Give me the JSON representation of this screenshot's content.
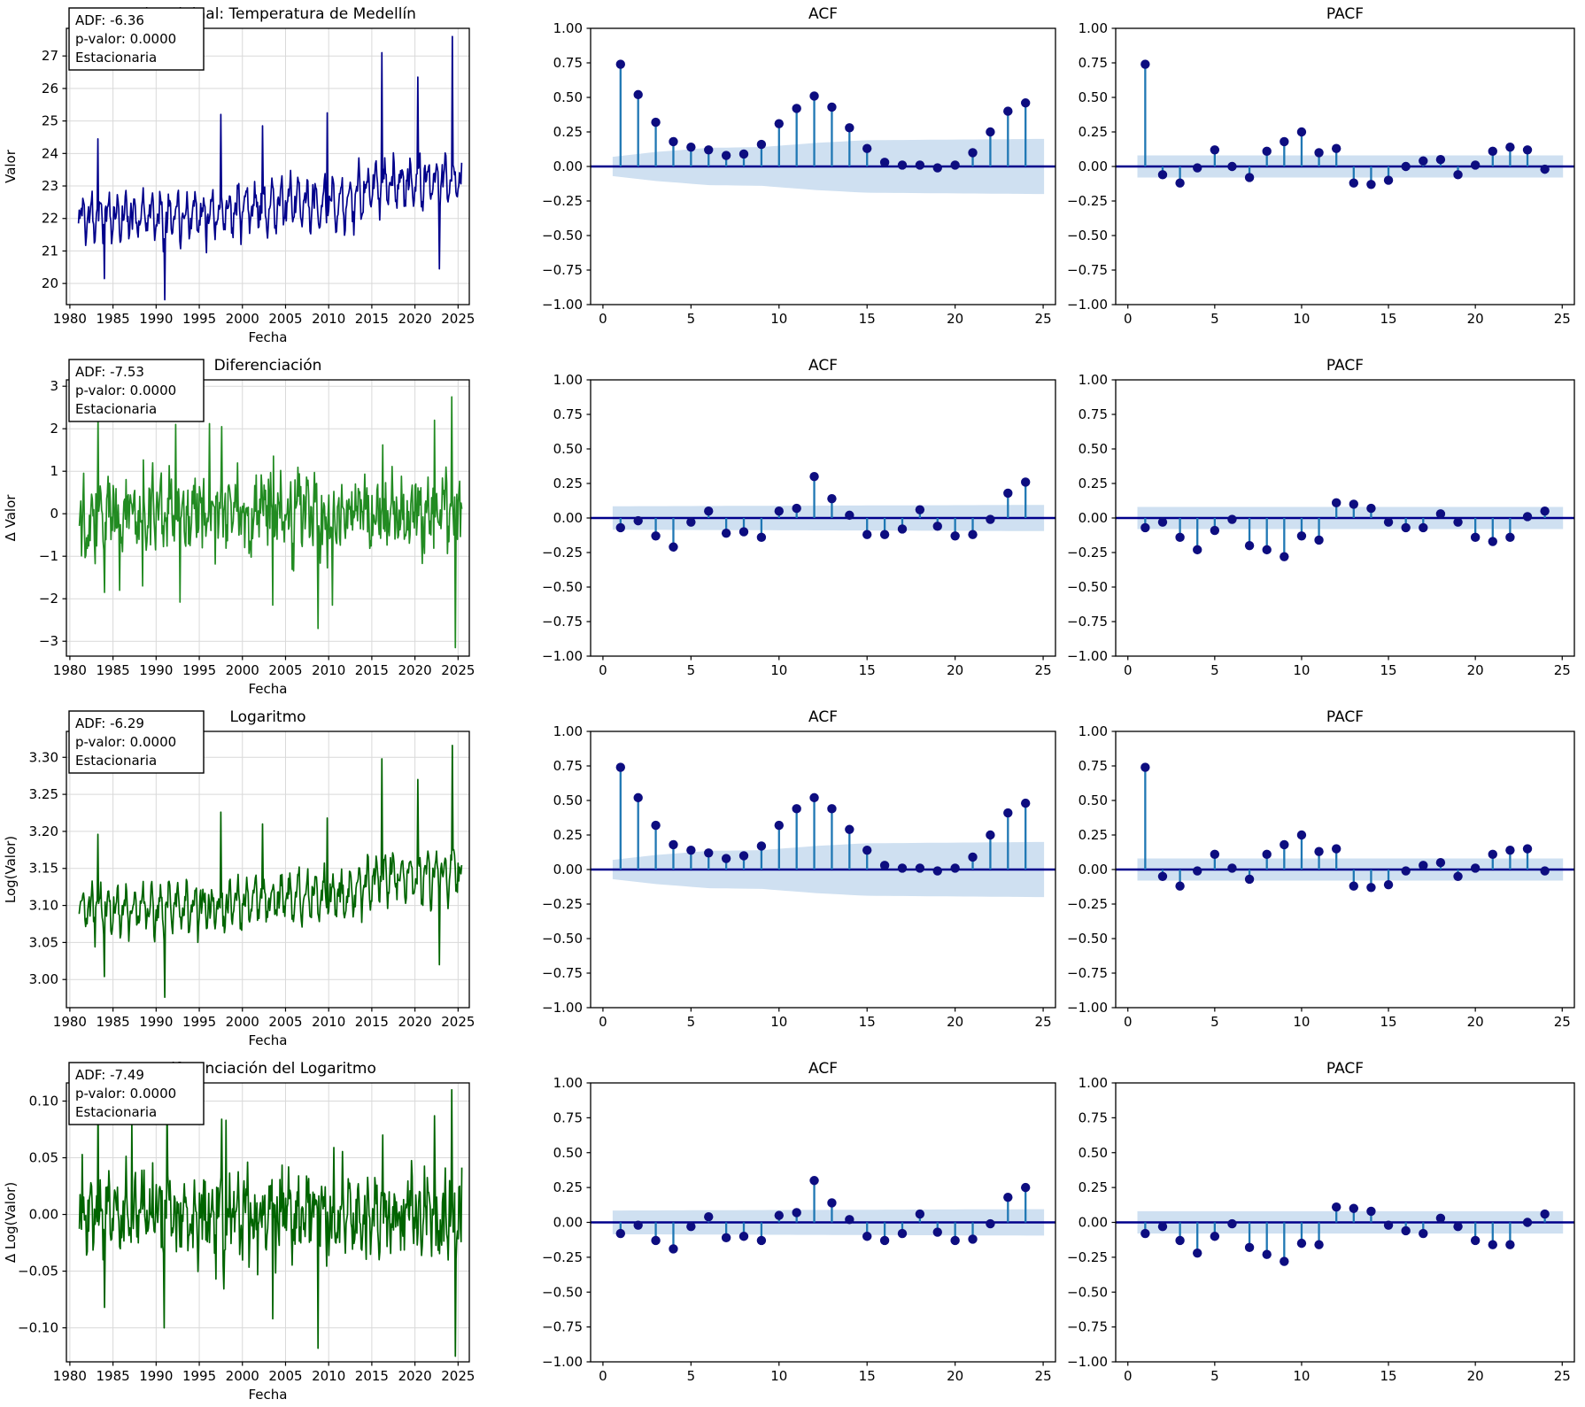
{
  "figure_title": "Análisis de estacionariedad: serie, ACF y PACF",
  "style": {
    "background": "#ffffff",
    "stem_line_color": "#1f77b4",
    "marker_color": "#0d0d80",
    "zero_line_color": "#00008B",
    "band_color": "#cfe0f1",
    "grid_color": "#d9d9d9",
    "spine_color": "#000000",
    "text_color": "#000000",
    "annotation_bg": "#ffffff",
    "annotation_border": "#000000"
  },
  "chart_data": [
    {
      "ts": {
        "type": "line",
        "title": "Serie original: Temperatura de Medellín",
        "xlabel": "Fecha",
        "ylabel": "Valor",
        "annotation_lines": [
          "ADF: -6.36",
          "p-valor: 0.0000",
          "Estacionaria"
        ],
        "line_color": "#00008B",
        "xlim": [
          1979.6,
          2026.3
        ],
        "xticks": [
          1980,
          1985,
          1990,
          1995,
          2000,
          2005,
          2010,
          2015,
          2020,
          2025
        ],
        "ylim": [
          19.35,
          27.85
        ],
        "yticks": [
          20,
          21,
          22,
          23,
          24,
          25,
          26,
          27
        ],
        "ytick_decimals": 0,
        "grid": true,
        "series_profile": {
          "seed": 11,
          "t_start": 1981.0,
          "t_end": 2025.45,
          "points_per_year": 12,
          "base_keypoints": [
            [
              1981,
              22.05
            ],
            [
              1995,
              22.15
            ],
            [
              2005,
              22.45
            ],
            [
              2012,
              22.45
            ],
            [
              2016,
              23.1
            ],
            [
              2020,
              23.05
            ],
            [
              2025.45,
              23.25
            ]
          ],
          "season_amp1": 0.5,
          "season_amp2": 0.28,
          "noise_amp": 0.42,
          "peaks": [
            [
              1983.25,
              24.45
            ],
            [
              1984.0,
              20.15
            ],
            [
              1991.0,
              19.5
            ],
            [
              1997.5,
              25.2
            ],
            [
              2002.3,
              24.85
            ],
            [
              2009.8,
              25.25
            ],
            [
              2016.2,
              27.1
            ],
            [
              2020.3,
              26.35
            ],
            [
              2022.8,
              20.45
            ],
            [
              2024.3,
              27.6
            ]
          ]
        }
      },
      "acf": {
        "type": "stem",
        "title": "ACF",
        "values": [
          0.74,
          0.52,
          0.32,
          0.18,
          0.14,
          0.12,
          0.08,
          0.09,
          0.16,
          0.31,
          0.42,
          0.51,
          0.43,
          0.28,
          0.13,
          0.03,
          0.01,
          0.01,
          -0.01,
          0.01,
          0.1,
          0.25,
          0.4,
          0.46
        ],
        "band_keypoints": [
          [
            0.55,
            0.07
          ],
          [
            3,
            0.105
          ],
          [
            6,
            0.135
          ],
          [
            9,
            0.14
          ],
          [
            12,
            0.17
          ],
          [
            15,
            0.19
          ],
          [
            25.5,
            0.2
          ]
        ],
        "xlim": [
          -0.7,
          25.7
        ],
        "xticks": [
          0,
          5,
          10,
          15,
          20,
          25
        ],
        "ylim": [
          -1,
          1
        ],
        "yticks": [
          1.0,
          0.75,
          0.5,
          0.25,
          0.0,
          -0.25,
          -0.5,
          -0.75,
          -1.0
        ]
      },
      "pacf": {
        "type": "stem",
        "title": "PACF",
        "values": [
          0.74,
          -0.06,
          -0.12,
          -0.01,
          0.12,
          0.0,
          -0.08,
          0.11,
          0.18,
          0.25,
          0.1,
          0.13,
          -0.12,
          -0.13,
          -0.1,
          0.0,
          0.04,
          0.05,
          -0.06,
          0.01,
          0.11,
          0.14,
          0.12,
          -0.02
        ],
        "band_keypoints": [
          [
            0.55,
            0.08
          ],
          [
            25.5,
            0.08
          ]
        ],
        "xlim": [
          -0.7,
          25.7
        ],
        "xticks": [
          0,
          5,
          10,
          15,
          20,
          25
        ],
        "ylim": [
          -1,
          1
        ],
        "yticks": [
          1.0,
          0.75,
          0.5,
          0.25,
          0.0,
          -0.25,
          -0.5,
          -0.75,
          -1.0
        ]
      }
    },
    {
      "ts": {
        "type": "line",
        "title": "Diferenciación",
        "xlabel": "Fecha",
        "ylabel": "Δ Valor",
        "annotation_lines": [
          "ADF: -7.53",
          "p-valor: 0.0000",
          "Estacionaria"
        ],
        "line_color": "#228B22",
        "xlim": [
          1979.6,
          2026.3
        ],
        "xticks": [
          1980,
          1985,
          1990,
          1995,
          2000,
          2005,
          2010,
          2015,
          2020,
          2025
        ],
        "ylim": [
          -3.35,
          3.15
        ],
        "yticks": [
          -3,
          -2,
          -1,
          0,
          1,
          2,
          3
        ],
        "ytick_decimals": 0,
        "grid": true,
        "series_profile": {
          "seed": 22,
          "t_start": 1981.1,
          "t_end": 2025.45,
          "points_per_year": 12,
          "base_keypoints": [
            [
              1981,
              0
            ],
            [
              2025.45,
              0
            ]
          ],
          "season_amp1": 0.3,
          "season_amp2": 0.22,
          "noise_amp": 0.85,
          "peaks": [
            [
              1983.3,
              2.3
            ],
            [
              1984.05,
              -1.85
            ],
            [
              1985.8,
              -1.8
            ],
            [
              1988.4,
              -1.7
            ],
            [
              1992.3,
              2.1
            ],
            [
              1992.8,
              -2.08
            ],
            [
              1996.2,
              2.12
            ],
            [
              1997.6,
              2.05
            ],
            [
              2003.5,
              -2.15
            ],
            [
              2008.8,
              -2.7
            ],
            [
              2010.4,
              -2.15
            ],
            [
              2016.3,
              1.62
            ],
            [
              2022.3,
              2.2
            ],
            [
              2024.3,
              2.75
            ],
            [
              2024.7,
              -3.15
            ]
          ]
        }
      },
      "acf": {
        "type": "stem",
        "title": "ACF",
        "values": [
          -0.07,
          -0.02,
          -0.13,
          -0.21,
          -0.03,
          0.05,
          -0.11,
          -0.1,
          -0.14,
          0.05,
          0.07,
          0.3,
          0.14,
          0.02,
          -0.12,
          -0.12,
          -0.08,
          0.06,
          -0.06,
          -0.13,
          -0.12,
          -0.01,
          0.18,
          0.26
        ],
        "band_keypoints": [
          [
            0.55,
            0.085
          ],
          [
            25.5,
            0.095
          ]
        ],
        "xlim": [
          -0.7,
          25.7
        ],
        "xticks": [
          0,
          5,
          10,
          15,
          20,
          25
        ],
        "ylim": [
          -1,
          1
        ],
        "yticks": [
          1.0,
          0.75,
          0.5,
          0.25,
          0.0,
          -0.25,
          -0.5,
          -0.75,
          -1.0
        ]
      },
      "pacf": {
        "type": "stem",
        "title": "PACF",
        "values": [
          -0.07,
          -0.03,
          -0.14,
          -0.23,
          -0.09,
          -0.01,
          -0.2,
          -0.23,
          -0.28,
          -0.13,
          -0.16,
          0.11,
          0.1,
          0.07,
          -0.03,
          -0.07,
          -0.07,
          0.03,
          -0.03,
          -0.14,
          -0.17,
          -0.14,
          0.01,
          0.05
        ],
        "band_keypoints": [
          [
            0.55,
            0.08
          ],
          [
            25.5,
            0.08
          ]
        ],
        "xlim": [
          -0.7,
          25.7
        ],
        "xticks": [
          0,
          5,
          10,
          15,
          20,
          25
        ],
        "ylim": [
          -1,
          1
        ],
        "yticks": [
          1.0,
          0.75,
          0.5,
          0.25,
          0.0,
          -0.25,
          -0.5,
          -0.75,
          -1.0
        ]
      }
    },
    {
      "ts": {
        "type": "line",
        "title": "Logaritmo",
        "xlabel": "Fecha",
        "ylabel": "Log(Valor)",
        "annotation_lines": [
          "ADF: -6.29",
          "p-valor: 0.0000",
          "Estacionaria"
        ],
        "line_color": "#006400",
        "xlim": [
          1979.6,
          2026.3
        ],
        "xticks": [
          1980,
          1985,
          1990,
          1995,
          2000,
          2005,
          2010,
          2015,
          2020,
          2025
        ],
        "ylim": [
          2.962,
          3.335
        ],
        "yticks": [
          3.0,
          3.05,
          3.1,
          3.15,
          3.2,
          3.25,
          3.3
        ],
        "ytick_decimals": 2,
        "grid": true,
        "series_profile": {
          "seed": 33,
          "t_start": 1981.0,
          "t_end": 2025.45,
          "points_per_year": 12,
          "base_keypoints": [
            [
              1981,
              3.093
            ],
            [
              1995,
              3.096
            ],
            [
              2005,
              3.112
            ],
            [
              2012,
              3.112
            ],
            [
              2016,
              3.141
            ],
            [
              2020,
              3.138
            ],
            [
              2025.45,
              3.148
            ]
          ],
          "season_amp1": 0.021,
          "season_amp2": 0.012,
          "noise_amp": 0.018,
          "peaks": [
            [
              1983.25,
              3.196
            ],
            [
              1984.0,
              3.004
            ],
            [
              1991.0,
              2.976
            ],
            [
              1997.5,
              3.226
            ],
            [
              2002.3,
              3.21
            ],
            [
              2009.8,
              3.218
            ],
            [
              2016.2,
              3.298
            ],
            [
              2020.3,
              3.27
            ],
            [
              2022.8,
              3.02
            ],
            [
              2024.3,
              3.316
            ]
          ]
        }
      },
      "acf": {
        "type": "stem",
        "title": "ACF",
        "values": [
          0.74,
          0.52,
          0.32,
          0.18,
          0.14,
          0.12,
          0.08,
          0.1,
          0.17,
          0.32,
          0.44,
          0.52,
          0.44,
          0.29,
          0.14,
          0.03,
          0.01,
          0.01,
          -0.01,
          0.01,
          0.09,
          0.25,
          0.41,
          0.48
        ],
        "band_keypoints": [
          [
            0.55,
            0.07
          ],
          [
            3,
            0.105
          ],
          [
            6,
            0.135
          ],
          [
            9,
            0.14
          ],
          [
            12,
            0.17
          ],
          [
            15,
            0.19
          ],
          [
            25.5,
            0.2
          ]
        ],
        "xlim": [
          -0.7,
          25.7
        ],
        "xticks": [
          0,
          5,
          10,
          15,
          20,
          25
        ],
        "ylim": [
          -1,
          1
        ],
        "yticks": [
          1.0,
          0.75,
          0.5,
          0.25,
          0.0,
          -0.25,
          -0.5,
          -0.75,
          -1.0
        ]
      },
      "pacf": {
        "type": "stem",
        "title": "PACF",
        "values": [
          0.74,
          -0.05,
          -0.12,
          -0.01,
          0.11,
          0.01,
          -0.07,
          0.11,
          0.18,
          0.25,
          0.13,
          0.15,
          -0.12,
          -0.13,
          -0.11,
          -0.01,
          0.03,
          0.05,
          -0.05,
          0.01,
          0.11,
          0.14,
          0.15,
          -0.01
        ],
        "band_keypoints": [
          [
            0.55,
            0.08
          ],
          [
            25.5,
            0.08
          ]
        ],
        "xlim": [
          -0.7,
          25.7
        ],
        "xticks": [
          0,
          5,
          10,
          15,
          20,
          25
        ],
        "ylim": [
          -1,
          1
        ],
        "yticks": [
          1.0,
          0.75,
          0.5,
          0.25,
          0.0,
          -0.25,
          -0.5,
          -0.75,
          -1.0
        ]
      }
    },
    {
      "ts": {
        "type": "line",
        "title": "Diferenciación del Logaritmo",
        "xlabel": "Fecha",
        "ylabel": "Δ Log(Valor)",
        "annotation_lines": [
          "ADF: -7.49",
          "p-valor: 0.0000",
          "Estacionaria"
        ],
        "line_color": "#006400",
        "xlim": [
          1979.6,
          2026.3
        ],
        "xticks": [
          1980,
          1985,
          1990,
          1995,
          2000,
          2005,
          2010,
          2015,
          2020,
          2025
        ],
        "ylim": [
          -0.13,
          0.116
        ],
        "yticks": [
          -0.1,
          -0.05,
          0.0,
          0.05,
          0.1
        ],
        "ytick_decimals": 2,
        "grid": true,
        "series_profile": {
          "seed": 44,
          "t_start": 1981.1,
          "t_end": 2025.45,
          "points_per_year": 12,
          "base_keypoints": [
            [
              1981,
              0
            ],
            [
              2025.45,
              0
            ]
          ],
          "season_amp1": 0.013,
          "season_amp2": 0.009,
          "noise_amp": 0.036,
          "peaks": [
            [
              1983.3,
              0.1
            ],
            [
              1984.05,
              -0.082
            ],
            [
              1987.2,
              0.082
            ],
            [
              1990.9,
              -0.1
            ],
            [
              1991.3,
              0.098
            ],
            [
              1997.6,
              0.084
            ],
            [
              1998.1,
              0.083
            ],
            [
              2003.5,
              -0.092
            ],
            [
              2008.8,
              -0.118
            ],
            [
              2016.3,
              0.07
            ],
            [
              2022.3,
              0.087
            ],
            [
              2024.3,
              0.11
            ],
            [
              2024.7,
              -0.125
            ]
          ]
        }
      },
      "acf": {
        "type": "stem",
        "title": "ACF",
        "values": [
          -0.08,
          -0.02,
          -0.13,
          -0.19,
          -0.03,
          0.04,
          -0.11,
          -0.1,
          -0.13,
          0.05,
          0.07,
          0.3,
          0.14,
          0.02,
          -0.1,
          -0.13,
          -0.08,
          0.06,
          -0.07,
          -0.13,
          -0.12,
          -0.01,
          0.18,
          0.25
        ],
        "band_keypoints": [
          [
            0.55,
            0.085
          ],
          [
            25.5,
            0.095
          ]
        ],
        "xlim": [
          -0.7,
          25.7
        ],
        "xticks": [
          0,
          5,
          10,
          15,
          20,
          25
        ],
        "ylim": [
          -1,
          1
        ],
        "yticks": [
          1.0,
          0.75,
          0.5,
          0.25,
          0.0,
          -0.25,
          -0.5,
          -0.75,
          -1.0
        ]
      },
      "pacf": {
        "type": "stem",
        "title": "PACF",
        "values": [
          -0.08,
          -0.03,
          -0.13,
          -0.22,
          -0.1,
          -0.01,
          -0.18,
          -0.23,
          -0.28,
          -0.15,
          -0.16,
          0.11,
          0.1,
          0.08,
          -0.02,
          -0.06,
          -0.08,
          0.03,
          -0.03,
          -0.13,
          -0.16,
          -0.16,
          0.0,
          0.06
        ],
        "band_keypoints": [
          [
            0.55,
            0.08
          ],
          [
            25.5,
            0.08
          ]
        ],
        "xlim": [
          -0.7,
          25.7
        ],
        "xticks": [
          0,
          5,
          10,
          15,
          20,
          25
        ],
        "ylim": [
          -1,
          1
        ],
        "yticks": [
          1.0,
          0.75,
          0.5,
          0.25,
          0.0,
          -0.25,
          -0.5,
          -0.75,
          -1.0
        ]
      }
    }
  ]
}
